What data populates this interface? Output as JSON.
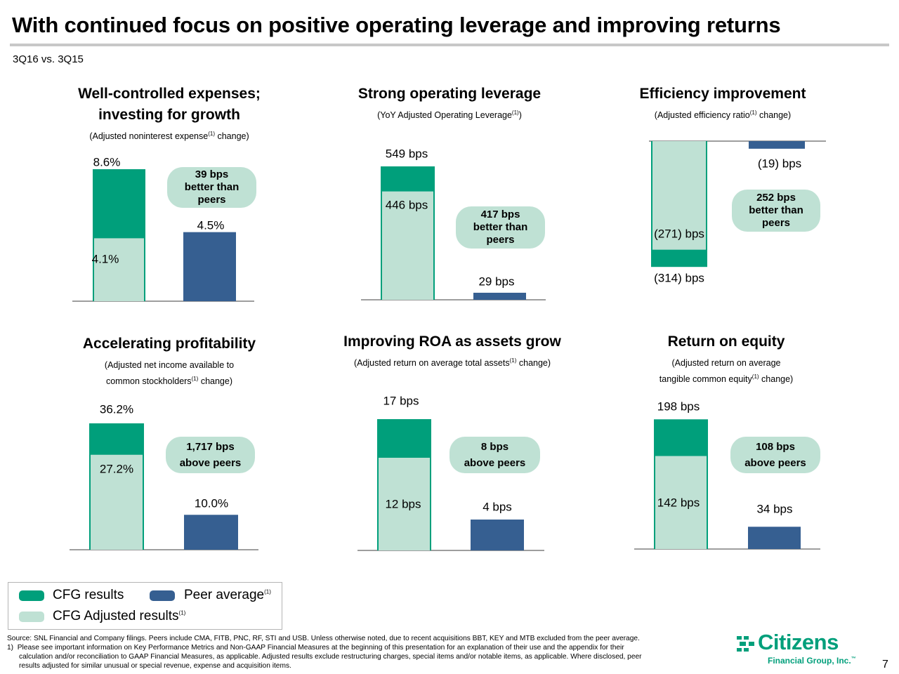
{
  "title": "With continued focus on positive operating leverage and improving returns",
  "subtitle": "3Q16 vs. 3Q15",
  "colors": {
    "cfg": "#009f7b",
    "cfg_adjusted": "#bfe1d4",
    "peer": "#365f91",
    "pill": "#bfe1d4"
  },
  "panels": [
    {
      "title_lines": [
        "Well-controlled expenses;",
        "investing for growth"
      ],
      "sub_lines": [
        {
          "pre": "(Adjusted noninterest expense",
          "sup": "(1)",
          "post": " change)"
        }
      ],
      "pill_lines": [
        "39 bps",
        "better than",
        "peers"
      ]
    },
    {
      "title_lines": [
        "Strong operating leverage"
      ],
      "sub_lines": [
        {
          "pre": "(YoY Adjusted Operating Leverage",
          "sup": "(1)",
          "post": ")"
        }
      ],
      "pill_lines": [
        "417 bps",
        "better than",
        "peers"
      ]
    },
    {
      "title_lines": [
        "Efficiency improvement"
      ],
      "sub_lines": [
        {
          "pre": "(Adjusted efficiency ratio",
          "sup": "(1)",
          "post": " change)"
        }
      ],
      "pill_lines": [
        "252 bps",
        "better than",
        "peers"
      ]
    },
    {
      "title_lines": [
        "Accelerating profitability"
      ],
      "sub_lines": [
        {
          "pre": "(Adjusted net income available to",
          "sup": "",
          "post": ""
        },
        {
          "pre": "common stockholders",
          "sup": "(1)",
          "post": " change)"
        }
      ],
      "pill_lines": [
        "1,717 bps",
        "above peers"
      ]
    },
    {
      "title_lines": [
        "Improving ROA as assets grow"
      ],
      "sub_lines": [
        {
          "pre": "(Adjusted return on average total assets",
          "sup": "(1)",
          "post": " change)"
        }
      ],
      "pill_lines": [
        "8 bps",
        "above peers"
      ]
    },
    {
      "title_lines": [
        "Return on equity"
      ],
      "sub_lines": [
        {
          "pre": "(Adjusted return on average",
          "sup": "",
          "post": ""
        },
        {
          "pre": "tangible common equity",
          "sup": "(1)",
          "post": " change)"
        }
      ],
      "pill_lines": [
        "108 bps",
        "above peers"
      ]
    }
  ],
  "chart_data": [
    {
      "type": "bar",
      "title": "Well-controlled expenses; investing for growth",
      "unit": "%",
      "categories": [
        "CFG",
        "Peer average"
      ],
      "series": [
        {
          "name": "CFG results",
          "values": [
            8.6,
            null
          ],
          "labels": [
            "8.6%",
            ""
          ]
        },
        {
          "name": "CFG Adjusted results",
          "values": [
            4.1,
            null
          ],
          "labels": [
            "4.1%",
            ""
          ]
        },
        {
          "name": "Peer average",
          "values": [
            null,
            4.5
          ],
          "labels": [
            "",
            "4.5%"
          ]
        }
      ]
    },
    {
      "type": "bar",
      "title": "Strong operating leverage",
      "unit": "bps",
      "categories": [
        "CFG",
        "Peer average"
      ],
      "series": [
        {
          "name": "CFG results",
          "values": [
            549,
            null
          ],
          "labels": [
            "549 bps",
            ""
          ]
        },
        {
          "name": "CFG Adjusted results",
          "values": [
            446,
            null
          ],
          "labels": [
            "446 bps",
            ""
          ]
        },
        {
          "name": "Peer average",
          "values": [
            null,
            29
          ],
          "labels": [
            "",
            "29 bps"
          ]
        }
      ]
    },
    {
      "type": "bar",
      "title": "Efficiency improvement",
      "unit": "bps",
      "categories": [
        "CFG",
        "Peer average"
      ],
      "series": [
        {
          "name": "CFG results",
          "values": [
            -314,
            null
          ],
          "labels": [
            "(314) bps",
            ""
          ]
        },
        {
          "name": "CFG Adjusted results",
          "values": [
            -271,
            null
          ],
          "labels": [
            "(271) bps",
            ""
          ]
        },
        {
          "name": "Peer average",
          "values": [
            null,
            -19
          ],
          "labels": [
            "",
            "(19) bps"
          ]
        }
      ]
    },
    {
      "type": "bar",
      "title": "Accelerating profitability",
      "unit": "%",
      "categories": [
        "CFG",
        "Peer average"
      ],
      "series": [
        {
          "name": "CFG results",
          "values": [
            36.2,
            null
          ],
          "labels": [
            "36.2%",
            ""
          ]
        },
        {
          "name": "CFG Adjusted results",
          "values": [
            27.2,
            null
          ],
          "labels": [
            "27.2%",
            ""
          ]
        },
        {
          "name": "Peer average",
          "values": [
            null,
            10.0
          ],
          "labels": [
            "",
            "10.0%"
          ]
        }
      ]
    },
    {
      "type": "bar",
      "title": "Improving ROA as assets grow",
      "unit": "bps",
      "categories": [
        "CFG",
        "Peer average"
      ],
      "series": [
        {
          "name": "CFG results",
          "values": [
            17,
            null
          ],
          "labels": [
            "17 bps",
            ""
          ]
        },
        {
          "name": "CFG Adjusted results",
          "values": [
            12,
            null
          ],
          "labels": [
            "12 bps",
            ""
          ]
        },
        {
          "name": "Peer average",
          "values": [
            null,
            4
          ],
          "labels": [
            "",
            "4 bps"
          ]
        }
      ]
    },
    {
      "type": "bar",
      "title": "Return on equity",
      "unit": "bps",
      "categories": [
        "CFG",
        "Peer average"
      ],
      "series": [
        {
          "name": "CFG results",
          "values": [
            198,
            null
          ],
          "labels": [
            "198 bps",
            ""
          ]
        },
        {
          "name": "CFG Adjusted results",
          "values": [
            142,
            null
          ],
          "labels": [
            "142 bps",
            ""
          ]
        },
        {
          "name": "Peer average",
          "values": [
            null,
            34
          ],
          "labels": [
            "",
            "34 bps"
          ]
        }
      ]
    }
  ],
  "legend": {
    "cfg": "CFG results",
    "peer": {
      "pre": "Peer average",
      "sup": "(1)"
    },
    "adjusted": {
      "pre": "CFG Adjusted results",
      "sup": "(1)"
    }
  },
  "source_lines": [
    "Source: SNL Financial and Company filings. Peers include CMA, FITB, PNC, RF, STI and USB. Unless otherwise noted, due to recent acquisitions BBT, KEY and MTB excluded from the peer average.",
    "1)  Please see important information on Key Performance Metrics and Non-GAAP Financial Measures at the beginning of this presentation for an explanation of their use and the appendix for their",
    "      calculation and/or reconciliation to GAAP Financial Measures, as applicable. Adjusted results exclude restructuring charges, special items and/or notable items, as applicable. Where disclosed, peer",
    "      results adjusted for similar unusual or special revenue, expense and acquisition items."
  ],
  "logo": {
    "name": "Citizens",
    "sub": "Financial Group, Inc.",
    "tm": "™",
    "icon": "citizens-logo-icon"
  },
  "page_number": "7"
}
